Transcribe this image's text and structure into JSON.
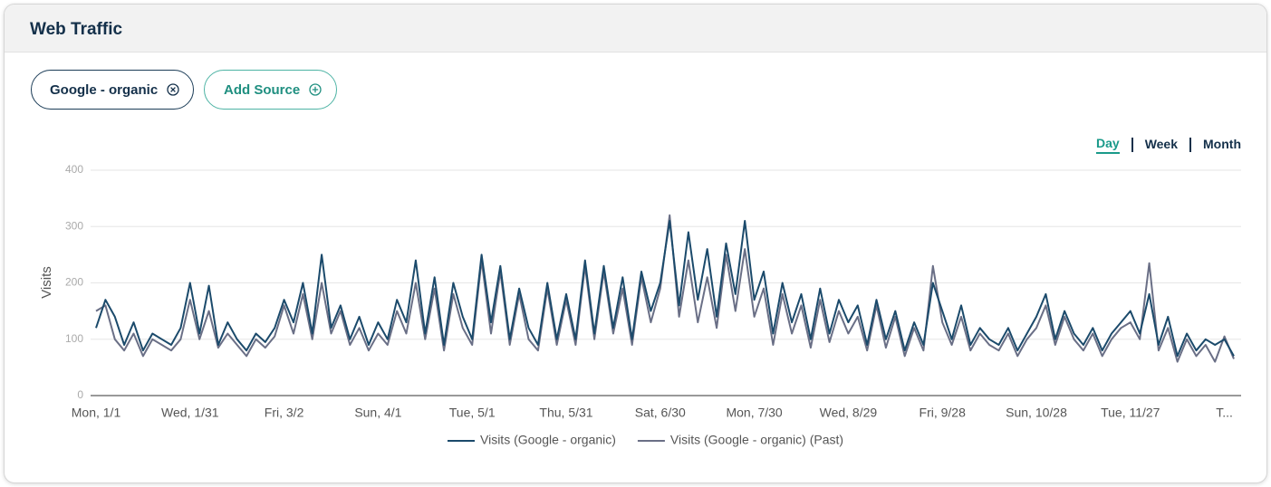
{
  "header": {
    "title": "Web Traffic"
  },
  "filters": [
    {
      "label": "Google - organic"
    },
    {
      "label": "Add Source"
    }
  ],
  "period_options": [
    "Day",
    "Week",
    "Month"
  ],
  "chart_data": {
    "type": "line",
    "ylabel": "Visits",
    "ylim": [
      0,
      400
    ],
    "yticks": [
      0,
      100,
      200,
      300,
      400
    ],
    "grid": true,
    "legend": "bottom",
    "categories": [
      "Mon, 1/1",
      null,
      null,
      null,
      null,
      null,
      null,
      null,
      null,
      null,
      "Wed, 1/31",
      null,
      null,
      null,
      null,
      null,
      null,
      null,
      null,
      null,
      "Fri, 3/2",
      null,
      null,
      null,
      null,
      null,
      null,
      null,
      null,
      null,
      "Sun, 4/1",
      null,
      null,
      null,
      null,
      null,
      null,
      null,
      null,
      null,
      "Tue, 5/1",
      null,
      null,
      null,
      null,
      null,
      null,
      null,
      null,
      null,
      "Thu, 5/31",
      null,
      null,
      null,
      null,
      null,
      null,
      null,
      null,
      null,
      "Sat, 6/30",
      null,
      null,
      null,
      null,
      null,
      null,
      null,
      null,
      null,
      "Mon, 7/30",
      null,
      null,
      null,
      null,
      null,
      null,
      null,
      null,
      null,
      "Wed, 8/29",
      null,
      null,
      null,
      null,
      null,
      null,
      null,
      null,
      null,
      "Fri, 9/28",
      null,
      null,
      null,
      null,
      null,
      null,
      null,
      null,
      null,
      "Sun, 10/28",
      null,
      null,
      null,
      null,
      null,
      null,
      null,
      null,
      null,
      "Tue, 11/27",
      null,
      null,
      null,
      null,
      null,
      null,
      null,
      null,
      null,
      "T...",
      null
    ],
    "series": [
      {
        "name": "Visits (Google - organic)",
        "color": "#1b4a6b",
        "values": [
          120,
          170,
          140,
          90,
          130,
          80,
          110,
          100,
          90,
          120,
          200,
          110,
          195,
          90,
          130,
          100,
          80,
          110,
          95,
          120,
          170,
          130,
          200,
          110,
          250,
          120,
          160,
          100,
          140,
          90,
          130,
          100,
          170,
          130,
          240,
          110,
          210,
          90,
          200,
          140,
          100,
          250,
          130,
          230,
          100,
          190,
          120,
          90,
          200,
          100,
          180,
          100,
          240,
          110,
          230,
          120,
          210,
          100,
          220,
          150,
          200,
          310,
          160,
          290,
          170,
          260,
          140,
          270,
          180,
          310,
          170,
          220,
          110,
          200,
          130,
          180,
          100,
          190,
          110,
          170,
          130,
          160,
          90,
          170,
          100,
          150,
          80,
          130,
          90,
          200,
          150,
          100,
          160,
          90,
          120,
          100,
          90,
          120,
          80,
          110,
          140,
          180,
          100,
          150,
          110,
          90,
          120,
          80,
          110,
          130,
          150,
          110,
          180,
          90,
          140,
          70,
          110,
          80,
          100,
          90,
          100,
          70
        ]
      },
      {
        "name": "Visits (Google - organic) (Past)",
        "color": "#6a6f86",
        "values": [
          150,
          160,
          100,
          80,
          110,
          70,
          100,
          90,
          80,
          100,
          170,
          100,
          150,
          85,
          110,
          90,
          70,
          100,
          85,
          105,
          160,
          110,
          180,
          100,
          200,
          110,
          150,
          90,
          120,
          80,
          110,
          90,
          150,
          110,
          200,
          100,
          190,
          80,
          180,
          120,
          90,
          240,
          110,
          220,
          90,
          180,
          100,
          80,
          190,
          90,
          170,
          90,
          230,
          100,
          220,
          110,
          190,
          90,
          210,
          130,
          190,
          320,
          140,
          240,
          130,
          210,
          120,
          250,
          150,
          260,
          140,
          190,
          90,
          180,
          110,
          160,
          85,
          170,
          95,
          150,
          110,
          140,
          80,
          160,
          85,
          140,
          70,
          120,
          80,
          230,
          130,
          90,
          140,
          80,
          110,
          90,
          80,
          110,
          70,
          100,
          120,
          160,
          90,
          140,
          100,
          80,
          110,
          70,
          100,
          120,
          130,
          100,
          235,
          80,
          120,
          60,
          100,
          70,
          90,
          60,
          105,
          65
        ]
      }
    ]
  }
}
